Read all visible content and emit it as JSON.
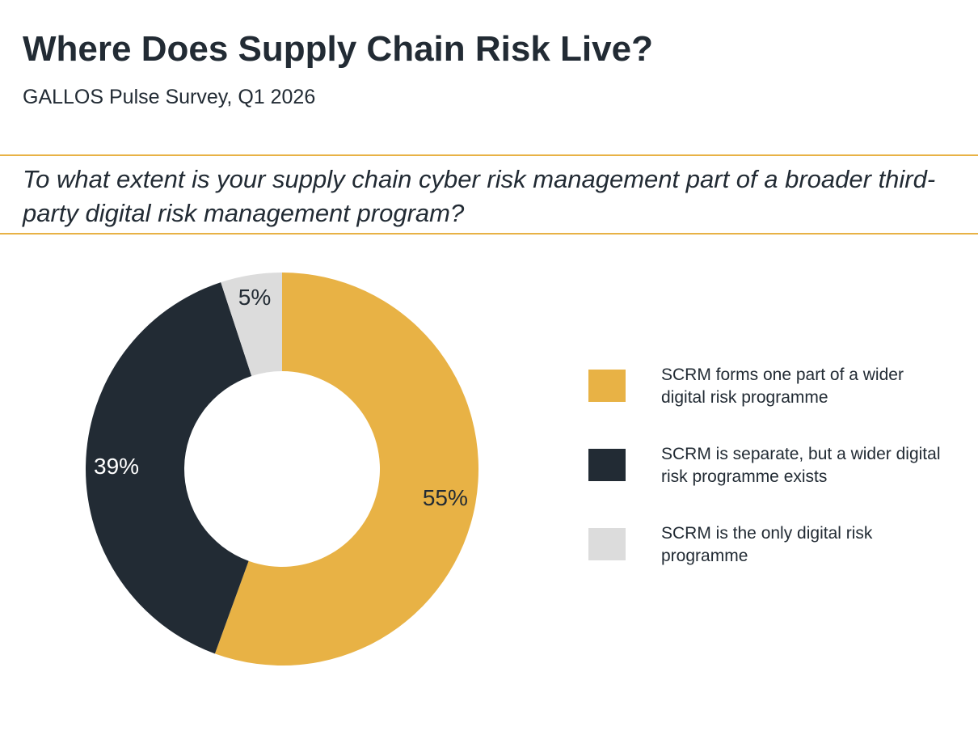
{
  "header": {
    "title": "Where Does Supply Chain Risk Live?",
    "subtitle": "GALLOS Pulse Survey, Q1 2026",
    "question": "To what extent is your supply chain cyber risk management part of a broader third-party digital risk management program?"
  },
  "colors": {
    "accent_rule": "#e8b245",
    "text": "#222b34"
  },
  "chart_data": {
    "type": "pie",
    "variant": "donut",
    "title": "To what extent is your supply chain cyber risk management part of a broader third-party digital risk management program?",
    "categories": [
      "SCRM forms one part of a wider digital risk programme",
      "SCRM is separate, but a wider digital risk programme exists",
      "SCRM is the only digital risk programme"
    ],
    "values": [
      55,
      39,
      5
    ],
    "labels": [
      "55%",
      "39%",
      "5%"
    ],
    "colors": [
      "#e8b245",
      "#222b34",
      "#dcdcdc"
    ],
    "label_colors": [
      "#222b34",
      "#ffffff",
      "#222b34"
    ],
    "legend_position": "right",
    "start_angle": "12 o'clock, clockwise"
  }
}
